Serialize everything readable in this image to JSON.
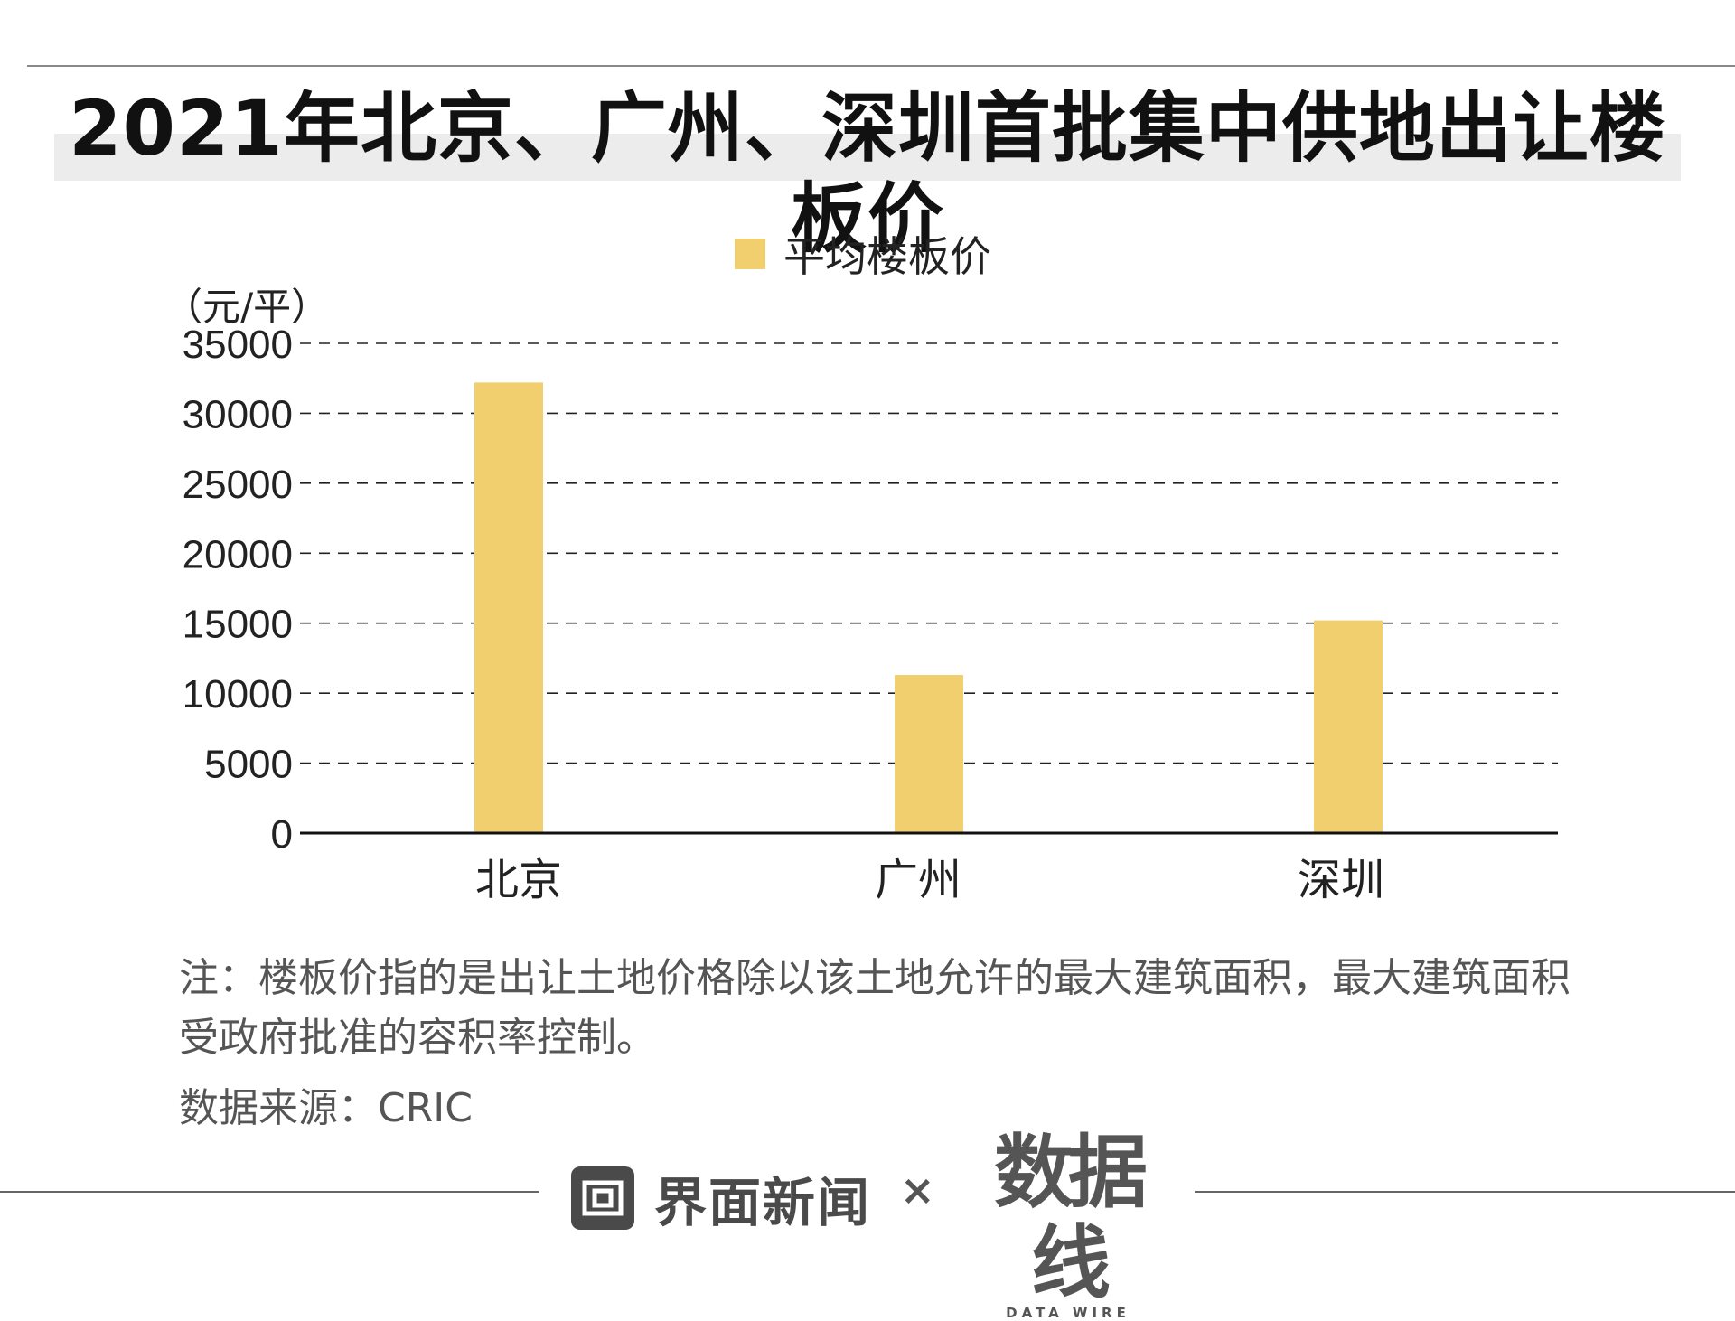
{
  "title": "2021年北京、广州、深圳首批集中供地出让楼板价",
  "unit_label": "（元/平）",
  "note": "注：楼板价指的是出让土地价格除以该土地允许的最大建筑面积，最大建筑面积受政府批准的容积率控制。",
  "source": "数据来源：CRIC",
  "footer": {
    "jiemian_logo_text": "界面新闻",
    "times_symbol": "×",
    "datawire_mark": "数据线",
    "datawire_sub": "DATA WIRE"
  },
  "colors": {
    "bar": "#F2CF6E",
    "grid": "#222222",
    "axis": "#111111"
  },
  "chart_data": {
    "type": "bar",
    "categories": [
      "北京",
      "广州",
      "深圳"
    ],
    "series": [
      {
        "name": "平均楼板价",
        "values": [
          32200,
          11300,
          15200
        ]
      }
    ],
    "ylim": [
      0,
      35000
    ],
    "yticks": [
      0,
      5000,
      10000,
      15000,
      20000,
      25000,
      30000,
      35000
    ],
    "grid": true,
    "grid_style": "dashed",
    "legend_position": "top-center"
  }
}
